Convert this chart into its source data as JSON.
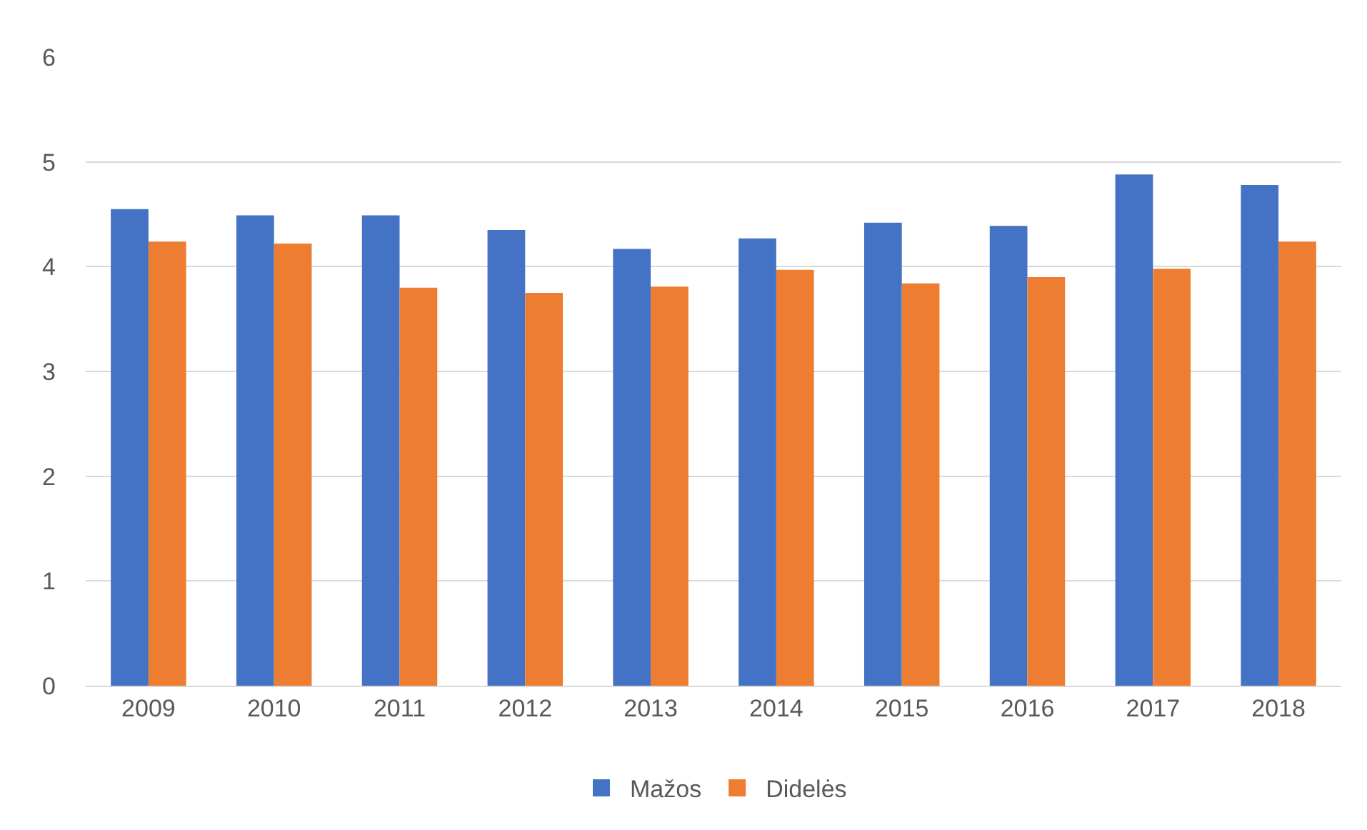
{
  "chart_data": {
    "type": "bar",
    "categories": [
      "2009",
      "2010",
      "2011",
      "2012",
      "2013",
      "2014",
      "2015",
      "2016",
      "2017",
      "2018"
    ],
    "series": [
      {
        "name": "Mažos",
        "color": "#4472c4",
        "values": [
          4.55,
          4.49,
          4.49,
          4.35,
          4.17,
          4.27,
          4.42,
          4.39,
          4.88,
          4.78
        ]
      },
      {
        "name": "Didelės",
        "color": "#ed7d31",
        "values": [
          4.24,
          4.22,
          3.8,
          3.75,
          3.81,
          3.97,
          3.84,
          3.9,
          3.98,
          4.24
        ]
      }
    ],
    "ylim": [
      0,
      6
    ],
    "yticks": [
      0,
      1,
      2,
      3,
      4,
      5,
      6
    ],
    "grid": "y",
    "legend": "bottom"
  }
}
